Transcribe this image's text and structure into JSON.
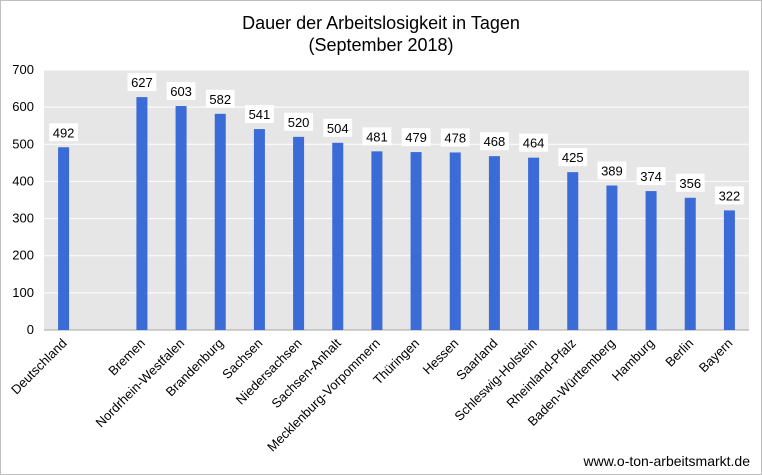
{
  "chart_data": {
    "type": "bar",
    "title": "Dauer der Arbeitslosigkeit in Tagen",
    "subtitle": "(September 2018)",
    "categories": [
      "Deutschland",
      "",
      "Bremen",
      "Nordrhein-Westfalen",
      "Brandenburg",
      "Sachsen",
      "Niedersachsen",
      "Sachsen-Anhalt",
      "Mecklenburg-Vorpommern",
      "Thüringen",
      "Hessen",
      "Saarland",
      "Schleswig-Holstein",
      "Rheinland-Pfalz",
      "Baden-Württemberg",
      "Hamburg",
      "Berlin",
      "Bayern"
    ],
    "values": [
      492,
      null,
      627,
      603,
      582,
      541,
      520,
      504,
      481,
      479,
      478,
      468,
      464,
      425,
      389,
      374,
      356,
      322
    ],
    "ylim": [
      0,
      700
    ],
    "yticks": [
      0,
      100,
      200,
      300,
      400,
      500,
      600,
      700
    ],
    "xlabel": "",
    "ylabel": "",
    "grid": true,
    "bar_color": "#3a6bd6",
    "plot_background": "#e6e6e6"
  },
  "source": "www.o-ton-arbeitsmarkt.de"
}
